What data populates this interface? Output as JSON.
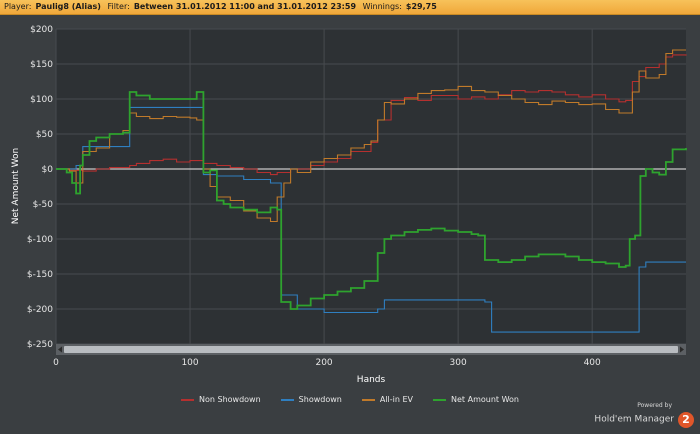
{
  "header": {
    "player_label": "Player:",
    "player_value": "Paulig8 (Alias)",
    "filter_label": "Filter:",
    "filter_value": "Between 31.01.2012 11:00 and 31.01.2012 23:59",
    "winnings_label": "Winnings:",
    "winnings_value": "$29,75"
  },
  "brand": {
    "powered_by": "Powered by",
    "name": "Hold'em Manager",
    "badge": "2"
  },
  "chart_data": {
    "type": "line",
    "xlabel": "Hands",
    "ylabel": "Net Amount Won",
    "xlim": [
      0,
      470
    ],
    "ylim": [
      -250,
      200
    ],
    "x_ticks": [
      0,
      100,
      200,
      300,
      400
    ],
    "x_tick_labels": [
      "0",
      "100",
      "200",
      "300",
      "400"
    ],
    "y_ticks": [
      200,
      150,
      100,
      50,
      0,
      -50,
      -100,
      -150,
      -200,
      -250
    ],
    "y_tick_labels": [
      "$200",
      "$150",
      "$100",
      "$50",
      "$0",
      "$-50",
      "$-100",
      "$-150",
      "$-200",
      "$-250"
    ],
    "grid": true,
    "legend_position": "bottom",
    "series": [
      {
        "name": "Non Showdown",
        "color": "#b5302f",
        "points": [
          [
            0,
            0
          ],
          [
            10,
            -2
          ],
          [
            20,
            -3
          ],
          [
            30,
            0
          ],
          [
            40,
            2
          ],
          [
            55,
            5
          ],
          [
            60,
            8
          ],
          [
            70,
            12
          ],
          [
            80,
            14
          ],
          [
            90,
            10
          ],
          [
            100,
            12
          ],
          [
            110,
            8
          ],
          [
            120,
            5
          ],
          [
            130,
            2
          ],
          [
            140,
            0
          ],
          [
            150,
            -5
          ],
          [
            160,
            -8
          ],
          [
            165,
            -5
          ],
          [
            175,
            0
          ],
          [
            180,
            0
          ],
          [
            190,
            5
          ],
          [
            200,
            10
          ],
          [
            210,
            15
          ],
          [
            220,
            25
          ],
          [
            235,
            38
          ],
          [
            240,
            70
          ],
          [
            250,
            98
          ],
          [
            260,
            102
          ],
          [
            270,
            98
          ],
          [
            280,
            105
          ],
          [
            290,
            105
          ],
          [
            300,
            100
          ],
          [
            310,
            103
          ],
          [
            320,
            100
          ],
          [
            330,
            106
          ],
          [
            340,
            112
          ],
          [
            350,
            110
          ],
          [
            360,
            112
          ],
          [
            370,
            110
          ],
          [
            380,
            106
          ],
          [
            390,
            103
          ],
          [
            400,
            106
          ],
          [
            410,
            100
          ],
          [
            420,
            96
          ],
          [
            425,
            98
          ],
          [
            430,
            125
          ],
          [
            435,
            132
          ],
          [
            440,
            145
          ],
          [
            450,
            150
          ],
          [
            455,
            160
          ],
          [
            460,
            163
          ],
          [
            470,
            162
          ]
        ]
      },
      {
        "name": "Showdown",
        "color": "#2f7fc0",
        "points": [
          [
            0,
            0
          ],
          [
            10,
            0
          ],
          [
            15,
            5
          ],
          [
            20,
            32
          ],
          [
            30,
            32
          ],
          [
            40,
            32
          ],
          [
            50,
            32
          ],
          [
            55,
            88
          ],
          [
            70,
            88
          ],
          [
            90,
            88
          ],
          [
            100,
            88
          ],
          [
            105,
            88
          ],
          [
            110,
            -8
          ],
          [
            120,
            -10
          ],
          [
            130,
            -10
          ],
          [
            140,
            -15
          ],
          [
            160,
            -20
          ],
          [
            165,
            -20
          ],
          [
            168,
            -180
          ],
          [
            180,
            -200
          ],
          [
            200,
            -205
          ],
          [
            220,
            -205
          ],
          [
            240,
            -200
          ],
          [
            245,
            -187
          ],
          [
            260,
            -187
          ],
          [
            280,
            -187
          ],
          [
            300,
            -187
          ],
          [
            310,
            -187
          ],
          [
            320,
            -190
          ],
          [
            325,
            -233
          ],
          [
            340,
            -233
          ],
          [
            360,
            -233
          ],
          [
            380,
            -233
          ],
          [
            400,
            -233
          ],
          [
            420,
            -233
          ],
          [
            430,
            -233
          ],
          [
            435,
            -140
          ],
          [
            440,
            -133
          ],
          [
            460,
            -133
          ],
          [
            470,
            -133
          ]
        ]
      },
      {
        "name": "All-in EV",
        "color": "#c07a2a",
        "points": [
          [
            0,
            0
          ],
          [
            10,
            -3
          ],
          [
            15,
            -20
          ],
          [
            20,
            25
          ],
          [
            30,
            30
          ],
          [
            40,
            50
          ],
          [
            50,
            55
          ],
          [
            55,
            80
          ],
          [
            60,
            75
          ],
          [
            70,
            72
          ],
          [
            80,
            75
          ],
          [
            90,
            74
          ],
          [
            100,
            73
          ],
          [
            105,
            70
          ],
          [
            110,
            0
          ],
          [
            115,
            -25
          ],
          [
            120,
            -40
          ],
          [
            130,
            -45
          ],
          [
            140,
            -60
          ],
          [
            150,
            -70
          ],
          [
            160,
            -75
          ],
          [
            165,
            -40
          ],
          [
            170,
            -20
          ],
          [
            175,
            0
          ],
          [
            180,
            -5
          ],
          [
            190,
            10
          ],
          [
            200,
            15
          ],
          [
            210,
            20
          ],
          [
            220,
            30
          ],
          [
            230,
            35
          ],
          [
            235,
            40
          ],
          [
            240,
            70
          ],
          [
            245,
            95
          ],
          [
            250,
            93
          ],
          [
            260,
            100
          ],
          [
            270,
            108
          ],
          [
            280,
            112
          ],
          [
            290,
            113
          ],
          [
            300,
            118
          ],
          [
            310,
            112
          ],
          [
            320,
            110
          ],
          [
            330,
            105
          ],
          [
            340,
            100
          ],
          [
            350,
            95
          ],
          [
            360,
            92
          ],
          [
            370,
            97
          ],
          [
            380,
            95
          ],
          [
            390,
            92
          ],
          [
            400,
            93
          ],
          [
            410,
            85
          ],
          [
            420,
            80
          ],
          [
            425,
            80
          ],
          [
            430,
            110
          ],
          [
            435,
            140
          ],
          [
            440,
            130
          ],
          [
            450,
            135
          ],
          [
            455,
            165
          ],
          [
            460,
            170
          ],
          [
            470,
            170
          ]
        ]
      },
      {
        "name": "Net Amount Won",
        "color": "#2ea32e",
        "points": [
          [
            0,
            0
          ],
          [
            8,
            -5
          ],
          [
            12,
            -20
          ],
          [
            15,
            -35
          ],
          [
            18,
            5
          ],
          [
            20,
            20
          ],
          [
            25,
            40
          ],
          [
            30,
            45
          ],
          [
            40,
            50
          ],
          [
            50,
            52
          ],
          [
            55,
            110
          ],
          [
            60,
            105
          ],
          [
            70,
            100
          ],
          [
            80,
            100
          ],
          [
            90,
            100
          ],
          [
            100,
            100
          ],
          [
            105,
            110
          ],
          [
            110,
            -5
          ],
          [
            115,
            -2
          ],
          [
            120,
            -45
          ],
          [
            125,
            -50
          ],
          [
            130,
            -55
          ],
          [
            140,
            -58
          ],
          [
            150,
            -62
          ],
          [
            160,
            -55
          ],
          [
            165,
            -58
          ],
          [
            168,
            -190
          ],
          [
            175,
            -200
          ],
          [
            180,
            -195
          ],
          [
            190,
            -185
          ],
          [
            200,
            -180
          ],
          [
            210,
            -175
          ],
          [
            220,
            -170
          ],
          [
            230,
            -160
          ],
          [
            235,
            -160
          ],
          [
            240,
            -120
          ],
          [
            245,
            -100
          ],
          [
            250,
            -95
          ],
          [
            260,
            -90
          ],
          [
            270,
            -87
          ],
          [
            280,
            -85
          ],
          [
            290,
            -88
          ],
          [
            300,
            -90
          ],
          [
            310,
            -93
          ],
          [
            315,
            -95
          ],
          [
            320,
            -130
          ],
          [
            330,
            -133
          ],
          [
            340,
            -130
          ],
          [
            350,
            -125
          ],
          [
            360,
            -122
          ],
          [
            370,
            -122
          ],
          [
            380,
            -125
          ],
          [
            390,
            -130
          ],
          [
            400,
            -133
          ],
          [
            410,
            -135
          ],
          [
            420,
            -140
          ],
          [
            425,
            -138
          ],
          [
            428,
            -100
          ],
          [
            432,
            -95
          ],
          [
            436,
            -10
          ],
          [
            440,
            0
          ],
          [
            445,
            -5
          ],
          [
            450,
            -8
          ],
          [
            455,
            10
          ],
          [
            460,
            28
          ],
          [
            470,
            30
          ]
        ]
      }
    ]
  }
}
